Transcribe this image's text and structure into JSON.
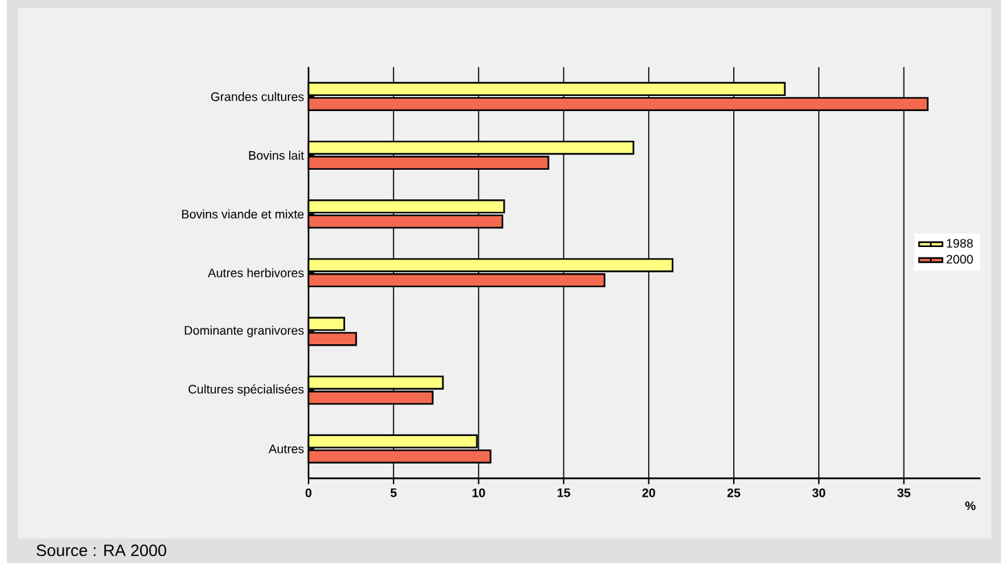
{
  "chart_data": {
    "type": "bar",
    "orientation": "horizontal",
    "categories": [
      "Grandes cultures",
      "Bovins lait",
      "Bovins viande et mixte",
      "Autres  herbivores",
      "Dominante granivores",
      "Cultures spécialisées",
      "Autres"
    ],
    "series": [
      {
        "name": "1988",
        "color": "#ffff80",
        "values": [
          28.0,
          19.1,
          11.5,
          21.4,
          2.1,
          7.9,
          9.9
        ]
      },
      {
        "name": "2000",
        "color": "#f46a50",
        "values": [
          36.4,
          14.1,
          11.4,
          17.4,
          2.8,
          7.3,
          10.7
        ]
      }
    ],
    "xlim": [
      0,
      39.5
    ],
    "xticks": [
      0,
      5,
      10,
      15,
      20,
      25,
      30,
      35
    ],
    "xlabel": "%",
    "grid": "x",
    "legend": "right",
    "annotations": [
      "Source : RA 2000"
    ]
  }
}
